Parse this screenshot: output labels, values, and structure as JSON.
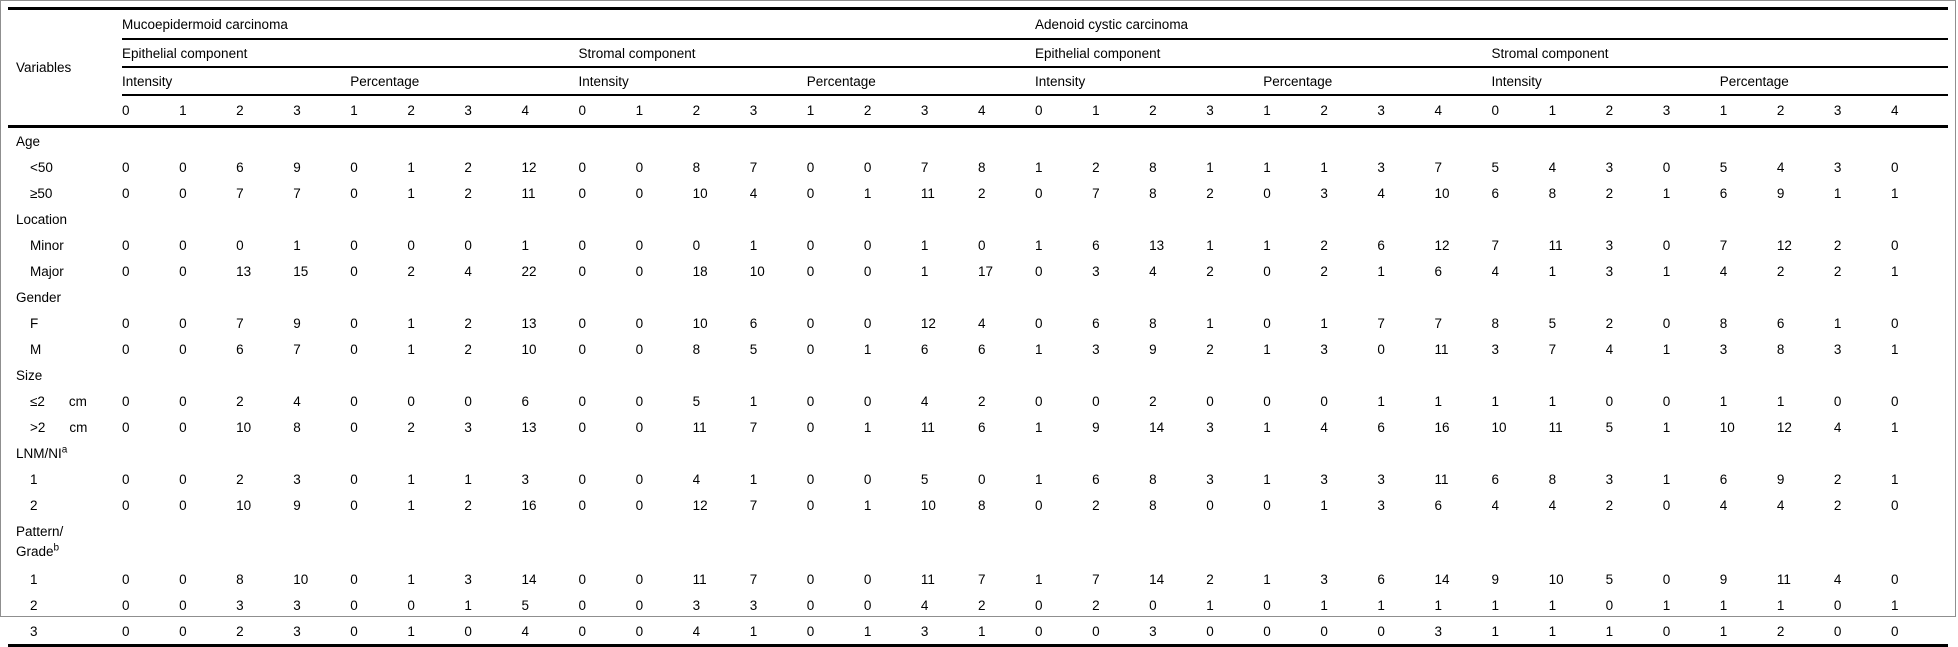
{
  "table": {
    "variables_label": "Variables",
    "title_groups": [
      "Mucoepidermoid carcinoma",
      "Adenoid cystic carcinoma"
    ],
    "components": [
      "Epithelial component",
      "Stromal component",
      "Epithelial component",
      "Stromal component"
    ],
    "measures": [
      "Intensity",
      "Percentage",
      "Intensity",
      "Percentage",
      "Intensity",
      "Percentage",
      "Intensity",
      "Percentage"
    ],
    "score_columns": [
      "0",
      "1",
      "2",
      "3",
      "1",
      "2",
      "3",
      "4",
      "0",
      "1",
      "2",
      "3",
      "1",
      "2",
      "3",
      "4",
      "0",
      "1",
      "2",
      "3",
      "1",
      "2",
      "3",
      "4",
      "0",
      "1",
      "2",
      "3",
      "1",
      "2",
      "3",
      "4"
    ],
    "rows": [
      {
        "type": "category",
        "label": "Age"
      },
      {
        "type": "data",
        "label": "<50",
        "values": [
          0,
          0,
          6,
          9,
          0,
          1,
          2,
          12,
          0,
          0,
          8,
          7,
          0,
          0,
          7,
          8,
          1,
          2,
          8,
          1,
          1,
          1,
          3,
          7,
          5,
          4,
          3,
          0,
          5,
          4,
          3,
          0
        ]
      },
      {
        "type": "data",
        "label": "≥50",
        "values": [
          0,
          0,
          7,
          7,
          0,
          1,
          2,
          11,
          0,
          0,
          10,
          4,
          0,
          1,
          11,
          2,
          0,
          7,
          8,
          2,
          0,
          3,
          4,
          10,
          6,
          8,
          2,
          1,
          6,
          9,
          1,
          1
        ]
      },
      {
        "type": "category",
        "label": "Location"
      },
      {
        "type": "data",
        "label": "Minor",
        "values": [
          0,
          0,
          0,
          1,
          0,
          0,
          0,
          1,
          0,
          0,
          0,
          1,
          0,
          0,
          1,
          0,
          1,
          6,
          13,
          1,
          1,
          2,
          6,
          12,
          7,
          11,
          3,
          0,
          7,
          12,
          2,
          0
        ]
      },
      {
        "type": "data",
        "label": "Major",
        "values": [
          0,
          0,
          13,
          15,
          0,
          2,
          4,
          22,
          0,
          0,
          18,
          10,
          0,
          0,
          1,
          17,
          0,
          3,
          4,
          2,
          0,
          2,
          1,
          6,
          4,
          1,
          3,
          1,
          4,
          2,
          2,
          1
        ]
      },
      {
        "type": "category",
        "label": "Gender"
      },
      {
        "type": "data",
        "label": "F",
        "values": [
          0,
          0,
          7,
          9,
          0,
          1,
          2,
          13,
          0,
          0,
          10,
          6,
          0,
          0,
          12,
          4,
          0,
          6,
          8,
          1,
          0,
          1,
          7,
          7,
          8,
          5,
          2,
          0,
          8,
          6,
          1,
          0
        ]
      },
      {
        "type": "data",
        "label": "M",
        "values": [
          0,
          0,
          6,
          7,
          0,
          1,
          2,
          10,
          0,
          0,
          8,
          5,
          0,
          1,
          6,
          6,
          1,
          3,
          9,
          2,
          1,
          3,
          0,
          11,
          3,
          7,
          4,
          1,
          3,
          8,
          3,
          1
        ]
      },
      {
        "type": "category",
        "label": "Size"
      },
      {
        "type": "data",
        "label": "≤2",
        "unit": "cm",
        "values": [
          0,
          0,
          2,
          4,
          0,
          0,
          0,
          6,
          0,
          0,
          5,
          1,
          0,
          0,
          4,
          2,
          0,
          0,
          2,
          0,
          0,
          0,
          1,
          1,
          1,
          1,
          0,
          0,
          1,
          1,
          0,
          0
        ]
      },
      {
        "type": "data",
        "label": ">2",
        "unit": "cm",
        "values": [
          0,
          0,
          10,
          8,
          0,
          2,
          3,
          13,
          0,
          0,
          11,
          7,
          0,
          1,
          11,
          6,
          1,
          9,
          14,
          3,
          1,
          4,
          6,
          16,
          10,
          11,
          5,
          1,
          10,
          12,
          4,
          1
        ]
      },
      {
        "type": "category",
        "label": "LNM/NI",
        "sup": "a"
      },
      {
        "type": "data",
        "label": "1",
        "values": [
          0,
          0,
          2,
          3,
          0,
          1,
          1,
          3,
          0,
          0,
          4,
          1,
          0,
          0,
          5,
          0,
          1,
          6,
          8,
          3,
          1,
          3,
          3,
          11,
          6,
          8,
          3,
          1,
          6,
          9,
          2,
          1
        ]
      },
      {
        "type": "data",
        "label": "2",
        "values": [
          0,
          0,
          10,
          9,
          0,
          1,
          2,
          16,
          0,
          0,
          12,
          7,
          0,
          1,
          10,
          8,
          0,
          2,
          8,
          0,
          0,
          1,
          3,
          6,
          4,
          4,
          2,
          0,
          4,
          4,
          2,
          0
        ]
      },
      {
        "type": "category",
        "label": "Pattern/\nGrade",
        "sup": "b"
      },
      {
        "type": "data",
        "label": "1",
        "values": [
          0,
          0,
          8,
          10,
          0,
          1,
          3,
          14,
          0,
          0,
          11,
          7,
          0,
          0,
          11,
          7,
          1,
          7,
          14,
          2,
          1,
          3,
          6,
          14,
          9,
          10,
          5,
          0,
          9,
          11,
          4,
          0
        ]
      },
      {
        "type": "data",
        "label": "2",
        "values": [
          0,
          0,
          3,
          3,
          0,
          0,
          1,
          5,
          0,
          0,
          3,
          3,
          0,
          0,
          4,
          2,
          0,
          2,
          0,
          1,
          0,
          1,
          1,
          1,
          1,
          1,
          0,
          1,
          1,
          1,
          0,
          1
        ]
      },
      {
        "type": "data",
        "label": "3",
        "values": [
          0,
          0,
          2,
          3,
          0,
          1,
          0,
          4,
          0,
          0,
          4,
          1,
          0,
          1,
          3,
          1,
          0,
          0,
          3,
          0,
          0,
          0,
          0,
          3,
          1,
          1,
          1,
          0,
          1,
          2,
          0,
          0
        ]
      }
    ]
  }
}
